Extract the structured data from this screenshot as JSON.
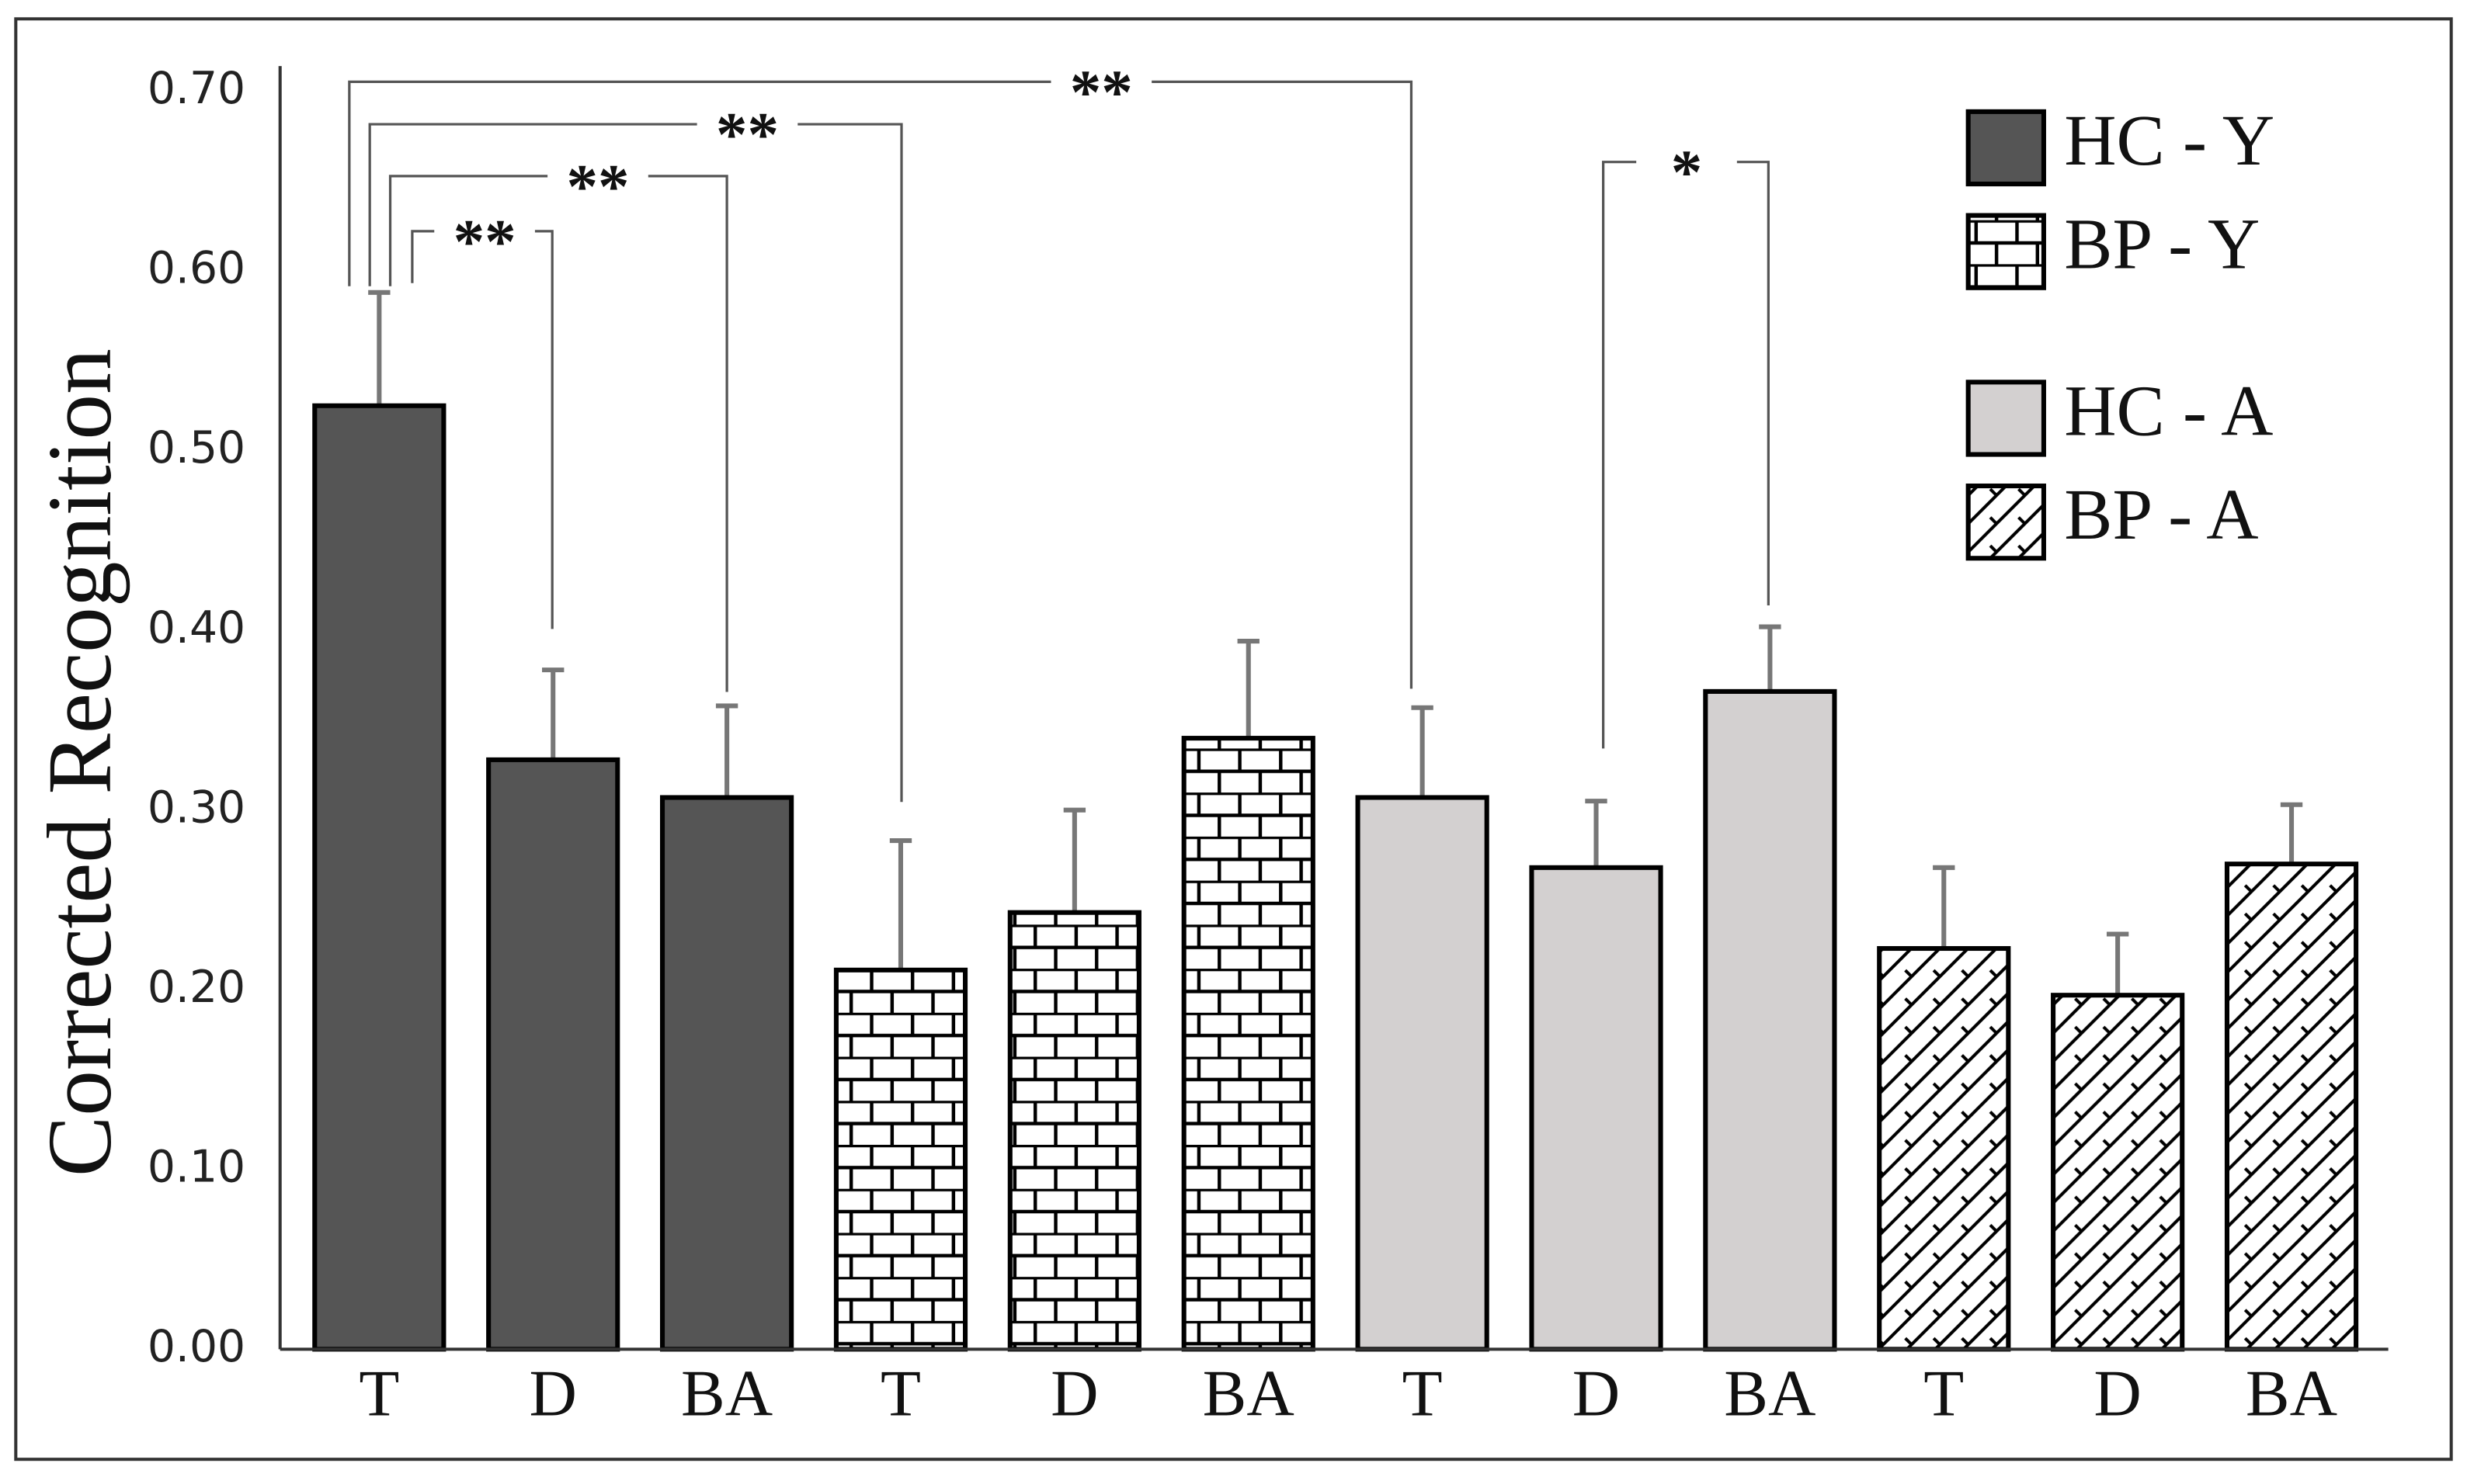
{
  "chart_data": {
    "type": "bar",
    "ylabel": "Corrected Recognition",
    "categories": [
      "T",
      "D",
      "BA"
    ],
    "series": [
      {
        "name": "HC - Y",
        "color": "#555555",
        "pattern": "solid",
        "values": [
          0.525,
          0.328,
          0.307
        ],
        "errors": [
          0.063,
          0.05,
          0.051
        ]
      },
      {
        "name": "BP - Y",
        "color": "#000000",
        "pattern": "bricks",
        "values": [
          0.211,
          0.243,
          0.34
        ],
        "errors": [
          0.072,
          0.057,
          0.054
        ]
      },
      {
        "name": "HC - A",
        "color": "#d3d0d0",
        "pattern": "solid",
        "values": [
          0.307,
          0.268,
          0.366
        ],
        "errors": [
          0.05,
          0.037,
          0.036
        ]
      },
      {
        "name": "BP - A",
        "color": "#000000",
        "pattern": "diagonal",
        "values": [
          0.223,
          0.197,
          0.27
        ],
        "errors": [
          0.045,
          0.034,
          0.033
        ]
      }
    ],
    "annotations": [
      "**",
      "**",
      "**",
      "**",
      "*"
    ],
    "ylim": [
      0,
      0.7
    ],
    "yticks": [
      {
        "value": 0,
        "label": "0.00"
      },
      {
        "value": 0.1,
        "label": "0.10"
      },
      {
        "value": 0.2,
        "label": "0.20"
      },
      {
        "value": 0.3,
        "label": "0.30"
      },
      {
        "value": 0.4,
        "label": "0.40"
      },
      {
        "value": 0.5,
        "label": "0.50"
      },
      {
        "value": 0.6,
        "label": "0.60"
      },
      {
        "value": 0.7,
        "label": "0.70"
      }
    ],
    "grid": false
  }
}
